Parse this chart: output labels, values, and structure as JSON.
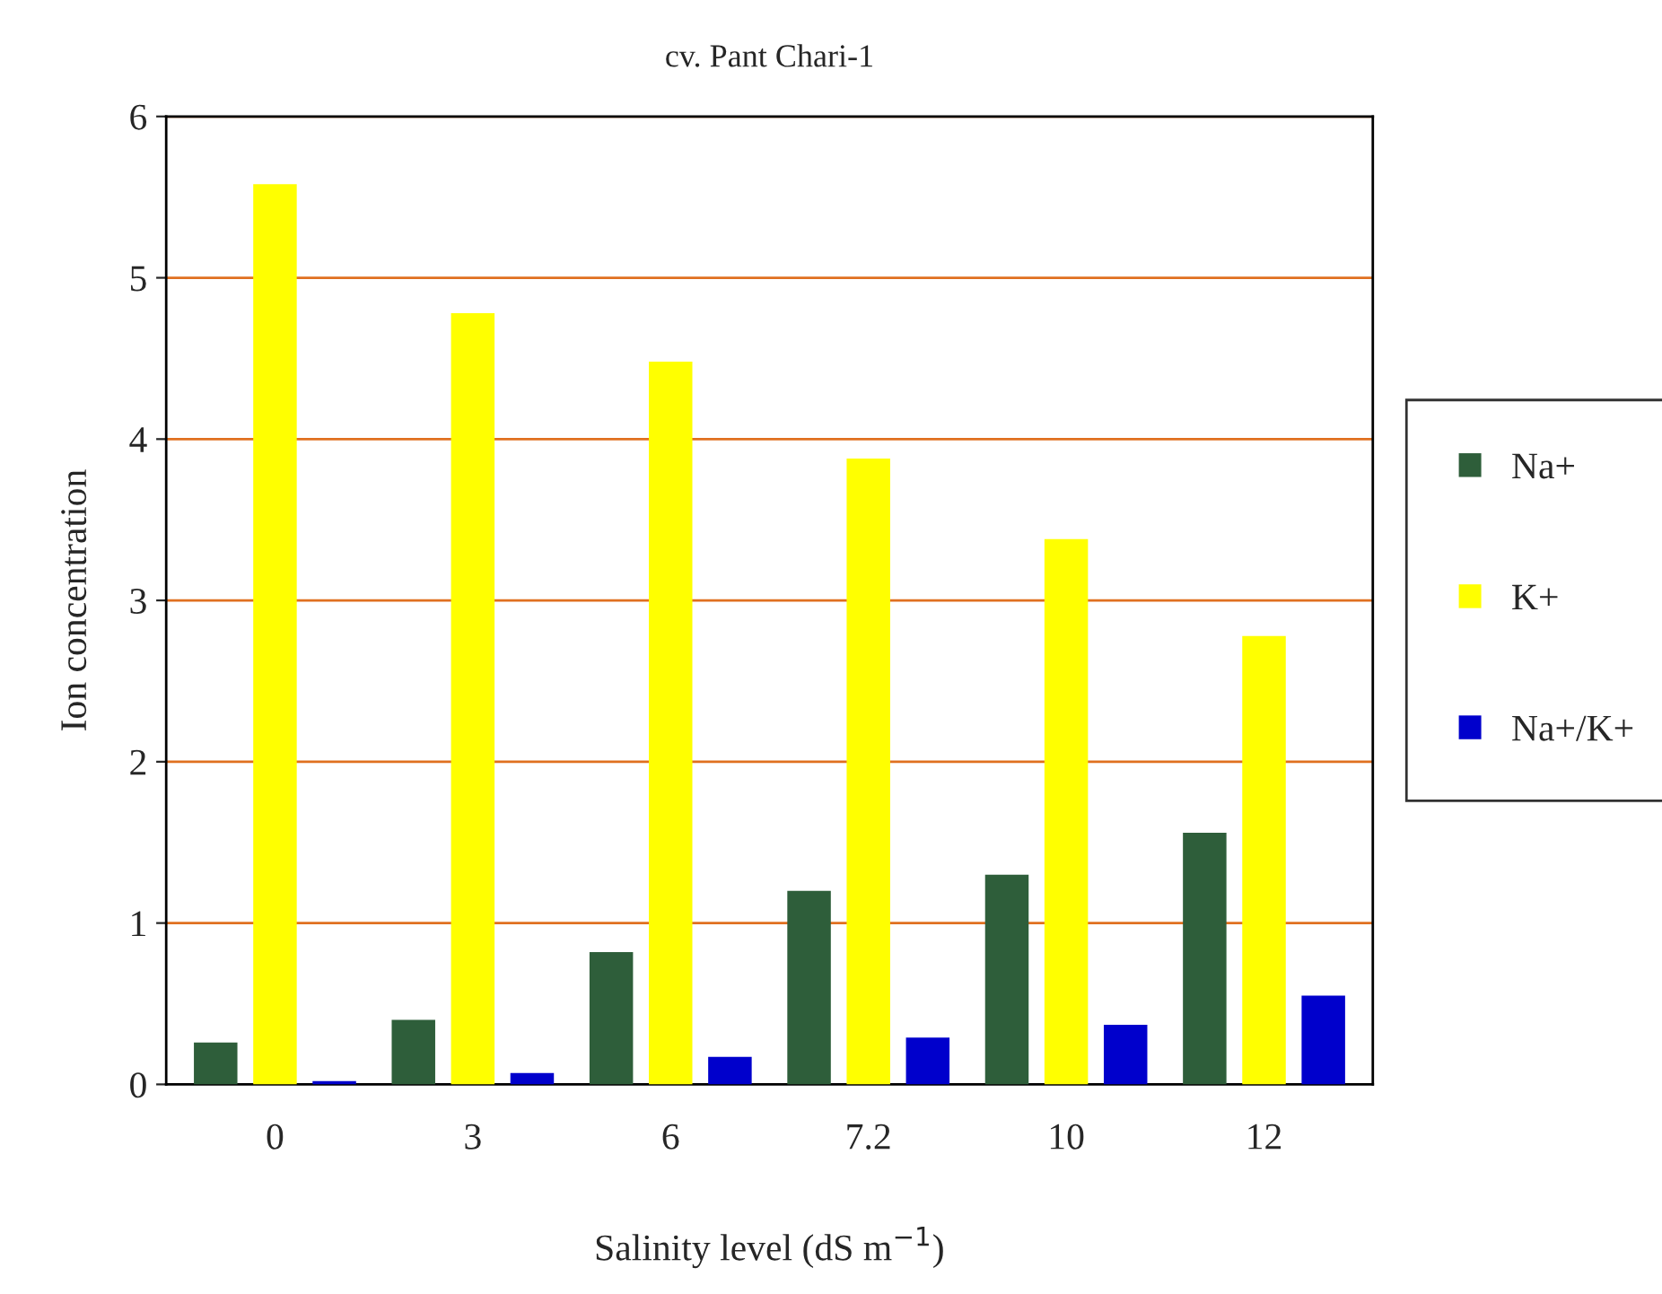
{
  "chart_data": {
    "type": "bar",
    "title": "cv. Pant Chari-1",
    "xlabel": "Salinity level (dS m$^{−1}$)",
    "ylabel": "Ion concentration",
    "categories": [
      "0",
      "3",
      "6",
      "7.2",
      "10",
      "12"
    ],
    "series": [
      {
        "name": "Na+",
        "color": "#2e5e3a",
        "values": [
          0.26,
          0.4,
          0.82,
          1.2,
          1.3,
          1.56
        ]
      },
      {
        "name": "K+",
        "color": "#ffff00",
        "values": [
          5.58,
          4.78,
          4.48,
          3.88,
          3.38,
          2.78
        ]
      },
      {
        "name": "Na+/K+",
        "color": "#0000cc",
        "values": [
          0.02,
          0.07,
          0.17,
          0.29,
          0.37,
          0.55
        ]
      }
    ],
    "ylim": [
      0,
      6
    ],
    "yticks": [
      0,
      1,
      2,
      3,
      4,
      5,
      6
    ],
    "grid": "y",
    "legend": "right"
  }
}
